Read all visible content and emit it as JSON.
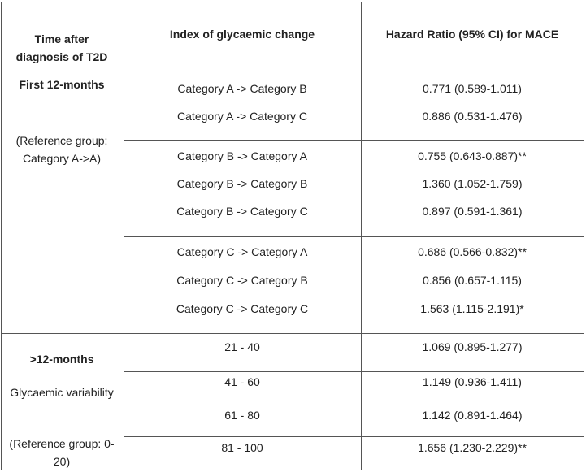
{
  "header": [
    "Time after diagnosis of T2D",
    "Index of glycaemic change",
    "Hazard Ratio (95% CI) for MACE"
  ],
  "sections": [
    {
      "period": "First 12-months",
      "notes": [
        "(Reference group: Category A->A)"
      ],
      "groups": [
        [
          [
            "Category A -> Category B",
            "0.771 (0.589-1.011)"
          ],
          [
            "Category A -> Category C",
            "0.886 (0.531-1.476)"
          ]
        ],
        [
          [
            "Category B -> Category A",
            "0.755 (0.643-0.887)**"
          ],
          [
            "Category B -> Category B",
            "1.360 (1.052-1.759)"
          ],
          [
            "Category B -> Category C",
            "0.897 (0.591-1.361)"
          ]
        ],
        [
          [
            "Category C -> Category A",
            "0.686 (0.566-0.832)**"
          ],
          [
            "Category C -> Category B",
            "0.856 (0.657-1.115)"
          ],
          [
            "Category C -> Category C",
            "1.563 (1.115-2.191)*"
          ]
        ]
      ]
    },
    {
      "period": ">12-months",
      "notes": [
        "Glycaemic variability",
        "(Reference group: 0-20)"
      ],
      "groups": [
        [
          [
            "21 - 40",
            "1.069 (0.895-1.277)"
          ]
        ],
        [
          [
            "41 - 60",
            "1.149 (0.936-1.411)"
          ]
        ],
        [
          [
            "61 - 80",
            "1.142 (0.891-1.464)"
          ]
        ],
        [
          [
            "81 - 100",
            "1.656 (1.230-2.229)**"
          ]
        ]
      ]
    }
  ]
}
